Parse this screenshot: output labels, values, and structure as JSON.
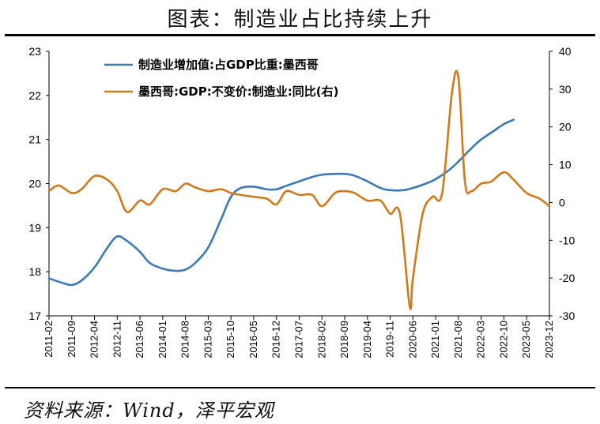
{
  "header": {
    "title": "图表：制造业占比持续上升"
  },
  "footer": {
    "source": "资料来源：Wind，泽平宏观"
  },
  "chart_data": {
    "type": "line",
    "title": "图表：制造业占比持续上升",
    "x_tick_labels": [
      "2011-02",
      "2011-09",
      "2012-04",
      "2012-11",
      "2013-06",
      "2014-01",
      "2014-08",
      "2015-03",
      "2015-10",
      "2016-05",
      "2016-12",
      "2017-07",
      "2018-02",
      "2018-09",
      "2019-04",
      "2019-11",
      "2020-06",
      "2021-01",
      "2021-08",
      "2022-03",
      "2022-10",
      "2023-05",
      "2023-12"
    ],
    "left_axis": {
      "min": 17,
      "max": 23,
      "ticks": [
        17,
        18,
        19,
        20,
        21,
        22,
        23
      ]
    },
    "right_axis": {
      "min": -30,
      "max": 40,
      "ticks": [
        -30,
        -20,
        -10,
        0,
        10,
        20,
        30,
        40
      ]
    },
    "legend_position": "top-left",
    "grid": false,
    "series": [
      {
        "name": "制造业增加值:占GDP比重:墨西哥",
        "axis": "left",
        "color": "#3a7ab8",
        "x": [
          "2011-02",
          "2011-06",
          "2011-09",
          "2011-12",
          "2012-04",
          "2012-08",
          "2012-11",
          "2013-02",
          "2013-06",
          "2013-09",
          "2014-01",
          "2014-05",
          "2014-08",
          "2014-11",
          "2015-03",
          "2015-07",
          "2015-10",
          "2016-01",
          "2016-05",
          "2016-09",
          "2016-12",
          "2017-03",
          "2017-07",
          "2017-11",
          "2018-02",
          "2018-06",
          "2018-09",
          "2018-12",
          "2019-04",
          "2019-08",
          "2019-11",
          "2020-03",
          "2020-06",
          "2020-10",
          "2021-01",
          "2021-05",
          "2021-08",
          "2021-12",
          "2022-03",
          "2022-07",
          "2022-10",
          "2023-01"
        ],
        "values": [
          17.85,
          17.75,
          17.7,
          17.8,
          18.1,
          18.55,
          18.8,
          18.7,
          18.45,
          18.2,
          18.07,
          18.02,
          18.05,
          18.2,
          18.55,
          19.2,
          19.7,
          19.9,
          19.93,
          19.87,
          19.87,
          19.95,
          20.05,
          20.15,
          20.2,
          20.22,
          20.22,
          20.18,
          20.05,
          19.9,
          19.85,
          19.85,
          19.9,
          20.0,
          20.1,
          20.3,
          20.5,
          20.8,
          21.0,
          21.2,
          21.35,
          21.45
        ]
      },
      {
        "name": "墨西哥:GDP:不变价:制造业:同比(右)",
        "axis": "right",
        "color": "#d07a1c",
        "x": [
          "2011-02",
          "2011-05",
          "2011-09",
          "2011-12",
          "2012-04",
          "2012-08",
          "2012-11",
          "2013-02",
          "2013-06",
          "2013-09",
          "2014-01",
          "2014-05",
          "2014-08",
          "2014-11",
          "2015-03",
          "2015-07",
          "2015-10",
          "2016-01",
          "2016-05",
          "2016-09",
          "2016-12",
          "2017-03",
          "2017-07",
          "2017-11",
          "2018-02",
          "2018-06",
          "2018-09",
          "2018-12",
          "2019-04",
          "2019-08",
          "2019-11",
          "2020-02",
          "2020-05",
          "2020-06",
          "2020-09",
          "2020-12",
          "2021-03",
          "2021-06",
          "2021-08",
          "2021-10",
          "2021-12",
          "2022-03",
          "2022-06",
          "2022-10",
          "2023-01",
          "2023-05",
          "2023-09",
          "2023-12"
        ],
        "values": [
          3.0,
          4.5,
          2.5,
          3.5,
          7.0,
          6.0,
          3.0,
          -2.5,
          0.5,
          -0.5,
          3.5,
          3.0,
          5.0,
          4.0,
          3.0,
          3.5,
          2.5,
          2.0,
          1.5,
          1.0,
          -0.5,
          3.0,
          2.0,
          2.0,
          -1.0,
          2.5,
          3.0,
          2.5,
          0.5,
          0.5,
          -3.0,
          -3.0,
          -27.5,
          -20.0,
          -3.0,
          1.5,
          2.5,
          29.0,
          33.0,
          5.5,
          3.0,
          5.0,
          5.5,
          8.0,
          6.0,
          2.5,
          1.0,
          -1.0
        ]
      }
    ]
  }
}
